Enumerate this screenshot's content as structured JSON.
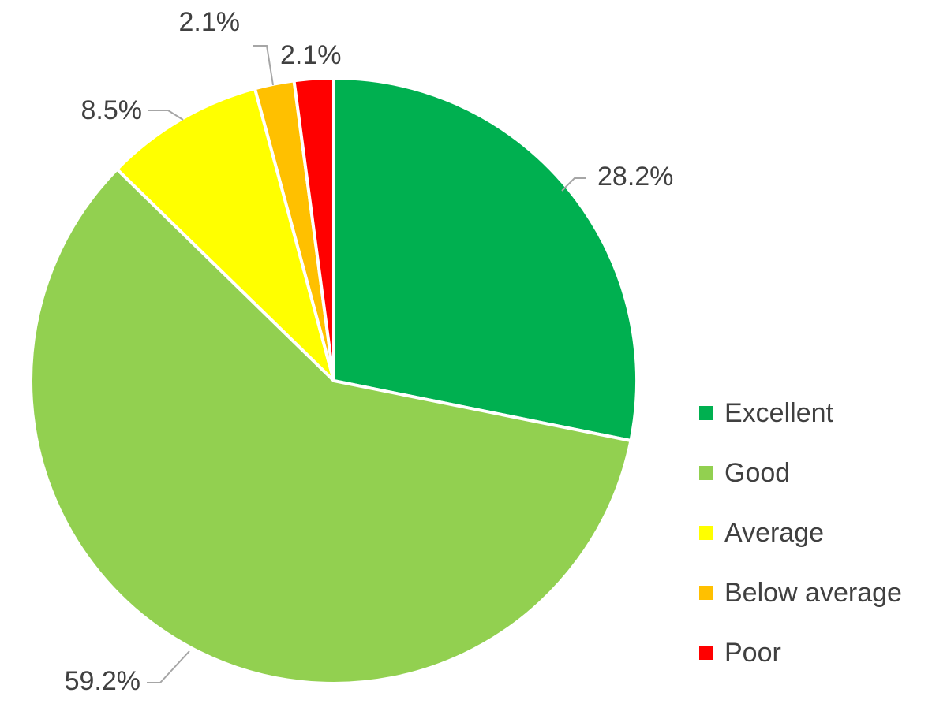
{
  "chart_data": {
    "type": "pie",
    "title": "",
    "categories": [
      "Excellent",
      "Good",
      "Average",
      "Below average",
      "Poor"
    ],
    "values": [
      28.2,
      59.2,
      8.5,
      2.1,
      2.1
    ],
    "labels": [
      "28.2%",
      "59.2%",
      "8.5%",
      "2.1%",
      "2.1%"
    ],
    "colors": [
      "#00b050",
      "#92d050",
      "#ffff00",
      "#ffc000",
      "#ff0000"
    ],
    "start": "12 o'clock",
    "direction": "clockwise",
    "legend_position": "right"
  }
}
